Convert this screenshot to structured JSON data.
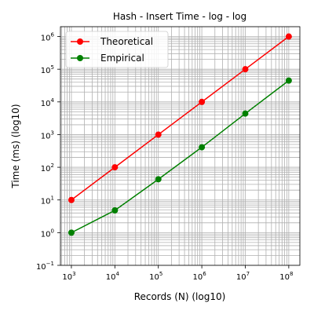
{
  "chart_data": {
    "type": "line",
    "title": "Hash - Insert Time - log - log",
    "xlabel": "Records (N) (log10)",
    "ylabel": "Time (ms) (log10)",
    "xscale": "log",
    "yscale": "log",
    "xlim": [
      560,
      180000000
    ],
    "ylim": [
      0.1,
      2000000
    ],
    "x_ticks": [
      {
        "base": "10",
        "exp": "3"
      },
      {
        "base": "10",
        "exp": "4"
      },
      {
        "base": "10",
        "exp": "5"
      },
      {
        "base": "10",
        "exp": "6"
      },
      {
        "base": "10",
        "exp": "7"
      },
      {
        "base": "10",
        "exp": "8"
      }
    ],
    "y_ticks": [
      {
        "base": "10",
        "exp": "−1"
      },
      {
        "base": "10",
        "exp": "0"
      },
      {
        "base": "10",
        "exp": "1"
      },
      {
        "base": "10",
        "exp": "2"
      },
      {
        "base": "10",
        "exp": "3"
      },
      {
        "base": "10",
        "exp": "4"
      },
      {
        "base": "10",
        "exp": "5"
      },
      {
        "base": "10",
        "exp": "6"
      }
    ],
    "grid": true,
    "legend_position": "top-left",
    "x": [
      1000,
      10000,
      100000,
      1000000,
      10000000,
      100000000
    ],
    "series": [
      {
        "name": "Theoretical",
        "color": "#ff0000",
        "values": [
          10,
          100,
          1000,
          10000,
          100000,
          1000000
        ]
      },
      {
        "name": "Empirical",
        "color": "#008000",
        "values": [
          1.0,
          4.8,
          43,
          410,
          4400,
          45000
        ]
      }
    ]
  }
}
